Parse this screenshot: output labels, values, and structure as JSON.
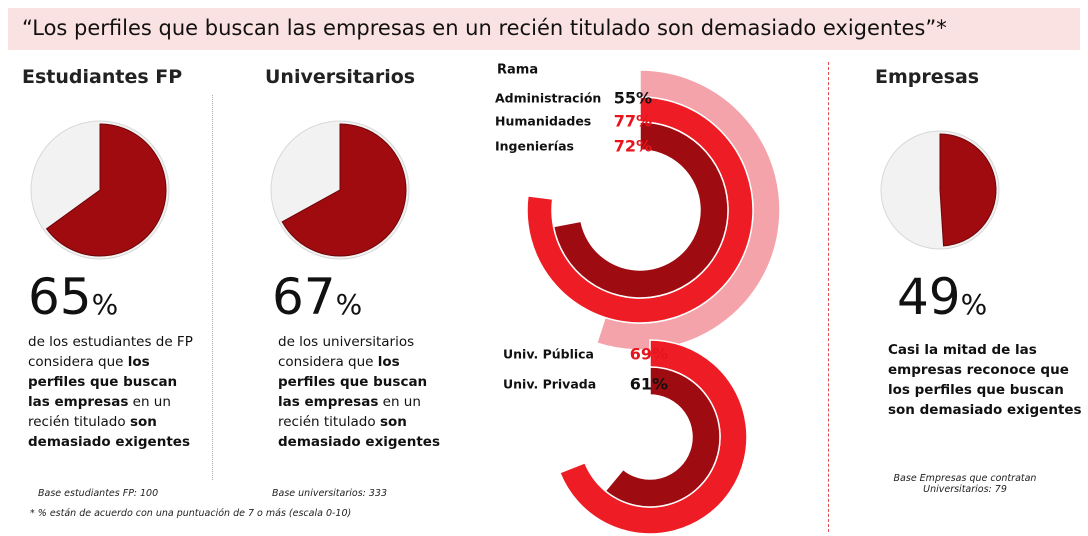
{
  "title": "“Los perfiles que buscan las empresas en un recién titulado son demasiado exigentes”*",
  "chart_data": [
    {
      "type": "pie",
      "title": "Estudiantes FP",
      "values": [
        65
      ],
      "unit": "%",
      "color": "#a00b10",
      "description": [
        {
          "text": "de los estudiantes de FP considera que ",
          "bold": false
        },
        {
          "text": "los perfiles que buscan las empresas",
          "bold": true
        },
        {
          "text": " en un recién titulado ",
          "bold": false
        },
        {
          "text": "son demasiado exigentes",
          "bold": true
        }
      ],
      "base": "Base estudiantes FP: 100"
    },
    {
      "type": "pie",
      "title": "Universitarios",
      "values": [
        67
      ],
      "unit": "%",
      "color": "#a00b10",
      "description": [
        {
          "text": "de los universitarios considera que ",
          "bold": false
        },
        {
          "text": "los perfiles que buscan las empresas",
          "bold": true
        },
        {
          "text": " en un recién titulado ",
          "bold": false
        },
        {
          "text": "son demasiado exigentes",
          "bold": true
        }
      ],
      "base": "Base universitarios: 333"
    },
    {
      "type": "radial_bar",
      "title": "Rama",
      "categories": [
        "Administración",
        "Humanidades",
        "Ingenierías"
      ],
      "values": [
        55,
        77,
        72
      ],
      "value_labels": [
        "55%",
        "77%",
        "72%"
      ],
      "colors": [
        "#f5a3aa",
        "#ee1c24",
        "#9e0b10"
      ],
      "label_colors": [
        "#111111",
        "#e8141c",
        "#e8141c"
      ]
    },
    {
      "type": "radial_bar",
      "categories": [
        "Univ. Pública",
        "Univ. Privada"
      ],
      "values": [
        69,
        61
      ],
      "value_labels": [
        "69%",
        "61%"
      ],
      "colors": [
        "#ee1c24",
        "#9e0b10"
      ],
      "label_colors": [
        "#e8141c",
        "#111111"
      ]
    },
    {
      "type": "pie",
      "title": "Empresas",
      "values": [
        49
      ],
      "unit": "%",
      "color": "#a00b10",
      "description": [
        {
          "text": "Casi la mitad de las empresas reconoce que los perfiles que buscan son demasiado exigentes",
          "bold": true
        }
      ],
      "base": "Base Empresas que contratan\nUniversitarios: 79"
    }
  ],
  "footnote": "* % están de acuerdo con una puntuación de 7 o más (escala 0-10)"
}
